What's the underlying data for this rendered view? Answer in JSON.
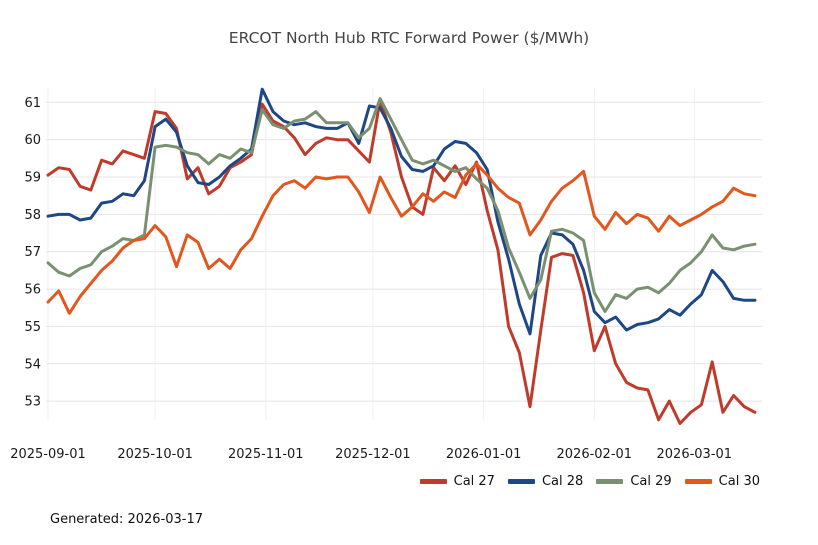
{
  "title": "ERCOT North Hub RTC Forward Power ($/MWh)",
  "footer": {
    "generated": "Generated: 2026-03-17"
  },
  "chart_data": {
    "type": "line",
    "title": "ERCOT North Hub RTC Forward Power ($/MWh)",
    "xlabel": "",
    "ylabel": "",
    "x_tick_labels": [
      "2025-09-01",
      "2025-10-01",
      "2025-11-01",
      "2025-12-01",
      "2026-01-01",
      "2026-02-01",
      "2026-03-01"
    ],
    "x_tick_days": [
      0,
      30,
      61,
      91,
      122,
      153,
      181
    ],
    "x_range_days": [
      0,
      198
    ],
    "point_interval_days": 3,
    "y_ticks": [
      53,
      54,
      55,
      56,
      57,
      58,
      59,
      60,
      61
    ],
    "ylim": [
      52.3,
      61.6
    ],
    "grid": "horizontal and vertical light gray",
    "legend_position": "bottom-right",
    "colors": {
      "grid_h": "#e5e5e5",
      "grid_v": "#efefef",
      "tick_text": "#1a1a1a",
      "title_text": "#444444"
    },
    "series": [
      {
        "name": "Cal 27",
        "color": "#bf3b2b",
        "values": [
          59.05,
          59.25,
          59.2,
          58.75,
          58.65,
          59.45,
          59.35,
          59.7,
          59.6,
          59.5,
          60.75,
          60.7,
          60.3,
          58.95,
          59.25,
          58.55,
          58.75,
          59.25,
          59.4,
          59.6,
          60.95,
          60.5,
          60.35,
          60.05,
          59.6,
          59.9,
          60.05,
          60.0,
          60.0,
          59.7,
          59.4,
          61.05,
          60.2,
          59.0,
          58.2,
          58.0,
          59.25,
          58.9,
          59.3,
          58.8,
          59.4,
          58.1,
          57.05,
          55.0,
          54.3,
          52.85,
          54.9,
          56.85,
          56.95,
          56.9,
          55.9,
          54.35,
          55.0,
          54.0,
          53.5,
          53.35,
          53.3,
          52.5,
          53.0,
          52.4,
          52.7,
          52.9,
          54.05,
          52.7,
          53.15,
          52.85,
          52.7
        ]
      },
      {
        "name": "Cal 28",
        "color": "#1e4785",
        "values": [
          57.95,
          58.0,
          58.0,
          57.85,
          57.9,
          58.3,
          58.35,
          58.55,
          58.5,
          58.9,
          60.35,
          60.55,
          60.2,
          59.3,
          58.85,
          58.8,
          59.0,
          59.3,
          59.5,
          59.75,
          61.35,
          60.75,
          60.5,
          60.4,
          60.45,
          60.35,
          60.3,
          60.3,
          60.45,
          59.9,
          60.9,
          60.85,
          60.3,
          59.55,
          59.2,
          59.15,
          59.3,
          59.75,
          59.95,
          59.9,
          59.65,
          59.2,
          57.8,
          56.8,
          55.6,
          54.8,
          56.9,
          57.5,
          57.45,
          57.2,
          56.5,
          55.4,
          55.1,
          55.25,
          54.9,
          55.05,
          55.1,
          55.2,
          55.45,
          55.3,
          55.6,
          55.85,
          56.5,
          56.2,
          55.75,
          55.7,
          55.7
        ]
      },
      {
        "name": "Cal 29",
        "color": "#7a9171",
        "values": [
          56.7,
          56.45,
          56.35,
          56.55,
          56.65,
          57.0,
          57.15,
          57.35,
          57.3,
          57.45,
          59.8,
          59.85,
          59.8,
          59.65,
          59.6,
          59.35,
          59.6,
          59.5,
          59.75,
          59.65,
          60.8,
          60.4,
          60.3,
          60.5,
          60.55,
          60.75,
          60.45,
          60.45,
          60.45,
          60.05,
          60.3,
          61.1,
          60.55,
          60.0,
          59.45,
          59.35,
          59.45,
          59.3,
          59.15,
          59.25,
          58.95,
          58.7,
          58.1,
          57.1,
          56.45,
          55.75,
          56.25,
          57.55,
          57.6,
          57.5,
          57.3,
          55.9,
          55.4,
          55.85,
          55.75,
          56.0,
          56.05,
          55.9,
          56.15,
          56.5,
          56.7,
          57.0,
          57.45,
          57.1,
          57.05,
          57.15,
          57.2
        ]
      },
      {
        "name": "Cal 30",
        "color": "#e2571e",
        "values": [
          55.65,
          55.95,
          55.35,
          55.8,
          56.15,
          56.5,
          56.75,
          57.1,
          57.3,
          57.35,
          57.7,
          57.4,
          56.6,
          57.45,
          57.25,
          56.55,
          56.8,
          56.55,
          57.05,
          57.35,
          57.95,
          58.5,
          58.8,
          58.9,
          58.7,
          59.0,
          58.95,
          59.0,
          59.0,
          58.6,
          58.05,
          59.0,
          58.45,
          57.95,
          58.2,
          58.55,
          58.35,
          58.6,
          58.45,
          59.05,
          59.35,
          59.05,
          58.7,
          58.45,
          58.3,
          57.45,
          57.85,
          58.35,
          58.7,
          58.9,
          59.15,
          57.95,
          57.6,
          58.05,
          57.75,
          58.0,
          57.9,
          57.55,
          57.95,
          57.7,
          57.85,
          58.0,
          58.2,
          58.35,
          58.7,
          58.55,
          58.5
        ]
      }
    ]
  }
}
